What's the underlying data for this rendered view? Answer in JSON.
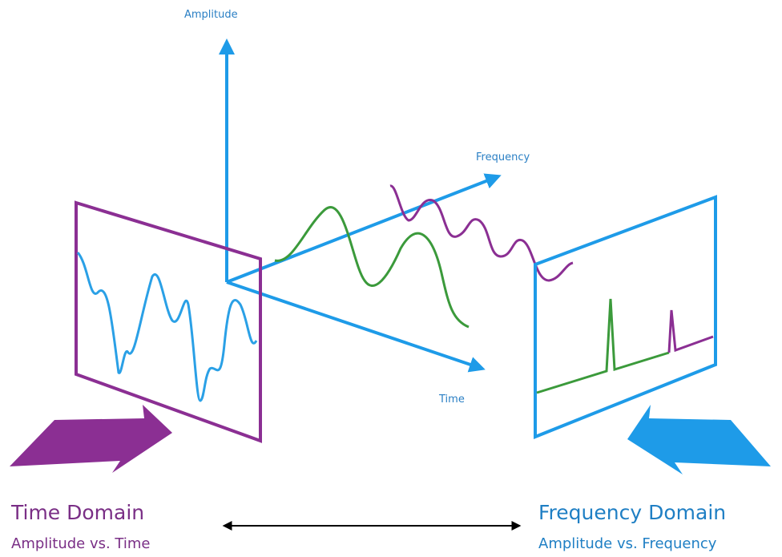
{
  "axes": {
    "amplitude": "Amplitude",
    "frequency": "Frequency",
    "time": "Time"
  },
  "panels": [
    {
      "title": "Time Domain",
      "subtitle": "Amplitude vs. Time"
    },
    {
      "title": "Frequency Domain",
      "subtitle": "Amplitude vs. Frequency"
    }
  ]
}
